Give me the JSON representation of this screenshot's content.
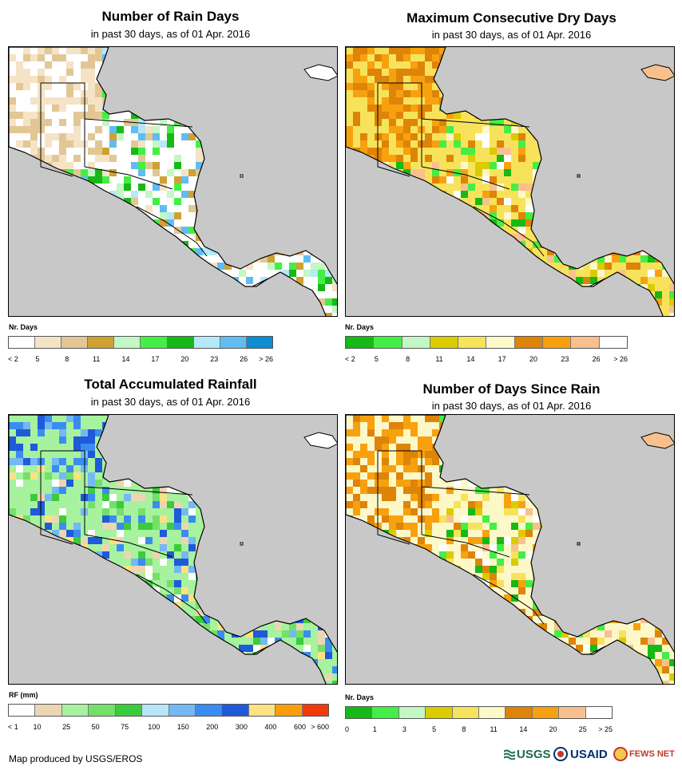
{
  "panels": [
    {
      "title": "Number of Rain Days",
      "subtitle": "in past 30 days, as of 01 Apr. 2016",
      "legend_label": "Nr. Days",
      "legend_colors": [
        "#ffffff",
        "#f5e3c6",
        "#e2c795",
        "#cda232",
        "#c3f7c4",
        "#44ee44",
        "#16b916",
        "#b3e9f8",
        "#61bcf2",
        "#0e8cd2"
      ],
      "ticks": [
        "< 2",
        "5",
        "8",
        "11",
        "14",
        "17",
        "20",
        "23",
        "26",
        "> 26"
      ],
      "map_style": "rain-days"
    },
    {
      "title": "Maximum Consecutive Dry Days",
      "subtitle": "in past 30 days, as of 01 Apr. 2016",
      "legend_label": "Nr. Days",
      "legend_colors": [
        "#16b916",
        "#44ee44",
        "#c3f7c4",
        "#dccb00",
        "#f7e35b",
        "#fdf8c8",
        "#de8408",
        "#f8a10f",
        "#f9c08e",
        "#ffffff"
      ],
      "ticks": [
        "< 2",
        "5",
        "8",
        "11",
        "14",
        "17",
        "20",
        "23",
        "26",
        "> 26"
      ],
      "map_style": "dry-days"
    },
    {
      "title": "Total Accumulated Rainfall",
      "subtitle": "in past 30 days, as of 01 Apr. 2016",
      "legend_label": "RF (mm)",
      "legend_colors": [
        "#ffffff",
        "#ecd6b2",
        "#a6f29e",
        "#74e06a",
        "#3ccb3c",
        "#b6e6f8",
        "#74b8f4",
        "#3a8cf0",
        "#1f5ad8",
        "#fde283",
        "#f99f0e",
        "#f23a0c"
      ],
      "ticks": [
        "< 1",
        "10",
        "25",
        "50",
        "75",
        "100",
        "150",
        "200",
        "300",
        "400",
        "600",
        "> 600"
      ],
      "map_style": "rainfall"
    },
    {
      "title": "Number of Days Since Rain",
      "subtitle": "in past 30 days, as of 01 Apr. 2016",
      "legend_label": "Nr. Days",
      "legend_colors": [
        "#16b916",
        "#44ee44",
        "#c3f7c4",
        "#dccb00",
        "#f7e35b",
        "#fdf8c8",
        "#de8408",
        "#f8a10f",
        "#f9c08e",
        "#ffffff"
      ],
      "ticks": [
        "0",
        "1",
        "3",
        "5",
        "8",
        "11",
        "14",
        "20",
        "25",
        "> 25"
      ],
      "map_style": "since-rain"
    }
  ],
  "footer": {
    "credit": "Map produced by USGS/EROS",
    "logos": [
      "USGS",
      "USAID",
      "FEWS NET"
    ],
    "colors": {
      "usgs": "#1c6b4f",
      "usaid": "#002f6c",
      "fews": "#c0392b"
    }
  }
}
